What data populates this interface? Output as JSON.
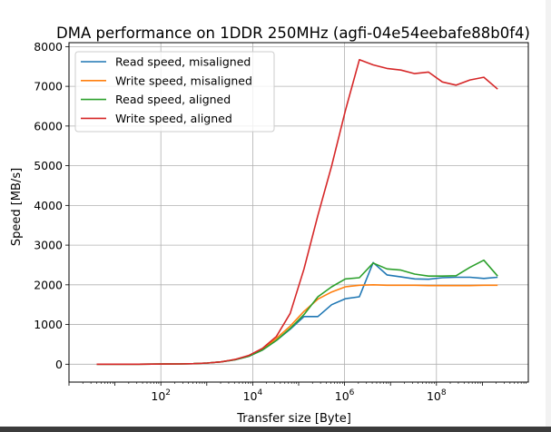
{
  "chart_data": {
    "type": "line",
    "title": "DMA performance on 1DDR 250MHz (agfi-04e54eebafe88b0f4)",
    "xlabel": "Transfer size [Byte]",
    "ylabel": "Speed [MB/s]",
    "xscale": "log",
    "xlim": [
      1,
      10000000000
    ],
    "ylim": [
      -450,
      8100
    ],
    "x_ticks": [
      {
        "value": 100,
        "base": "10",
        "exp": "2"
      },
      {
        "value": 10000,
        "base": "10",
        "exp": "4"
      },
      {
        "value": 1000000,
        "base": "10",
        "exp": "6"
      },
      {
        "value": 100000000,
        "base": "10",
        "exp": "8"
      }
    ],
    "y_ticks": [
      {
        "value": 0,
        "label": "0"
      },
      {
        "value": 1000,
        "label": "1000"
      },
      {
        "value": 2000,
        "label": "2000"
      },
      {
        "value": 3000,
        "label": "3000"
      },
      {
        "value": 4000,
        "label": "4000"
      },
      {
        "value": 5000,
        "label": "5000"
      },
      {
        "value": 6000,
        "label": "6000"
      },
      {
        "value": 7000,
        "label": "7000"
      },
      {
        "value": 8000,
        "label": "8000"
      }
    ],
    "grid": true,
    "legend_position": "top-left",
    "x": [
      4,
      8,
      16,
      32,
      64,
      128,
      256,
      512,
      1024,
      2048,
      4096,
      8192,
      16384,
      32768,
      65536,
      131072,
      262144,
      524288,
      1048576,
      2097152,
      4194304,
      8388608,
      16777216,
      33554432,
      67108864,
      134217728,
      268435456,
      536870912,
      1073741824,
      2147483648
    ],
    "series": [
      {
        "name": "Read speed, misaligned",
        "color": "#1f77b4",
        "values": [
          0,
          0,
          1,
          1,
          2,
          4,
          8,
          15,
          30,
          60,
          110,
          200,
          360,
          600,
          880,
          1200,
          1200,
          1500,
          1650,
          1700,
          2560,
          2250,
          2200,
          2150,
          2140,
          2180,
          2190,
          2190,
          2160,
          2190
        ]
      },
      {
        "name": "Write speed, misaligned",
        "color": "#ff7f0e",
        "values": [
          0,
          0,
          1,
          1,
          2,
          4,
          8,
          15,
          30,
          60,
          120,
          210,
          380,
          650,
          960,
          1330,
          1640,
          1820,
          1950,
          1990,
          2000,
          1990,
          1990,
          1990,
          1980,
          1980,
          1980,
          1980,
          1990,
          1990
        ]
      },
      {
        "name": "Read speed, aligned",
        "color": "#2ca02c",
        "values": [
          0,
          0,
          1,
          1,
          2,
          4,
          8,
          15,
          30,
          60,
          110,
          200,
          360,
          600,
          900,
          1250,
          1700,
          1950,
          2150,
          2180,
          2550,
          2400,
          2370,
          2270,
          2220,
          2220,
          2230,
          2440,
          2620,
          2220
        ]
      },
      {
        "name": "Write speed, aligned",
        "color": "#d62728",
        "values": [
          0,
          0,
          1,
          1,
          2,
          4,
          8,
          15,
          30,
          60,
          120,
          220,
          400,
          700,
          1280,
          2400,
          3750,
          5000,
          6400,
          7670,
          7540,
          7450,
          7410,
          7320,
          7360,
          7110,
          7030,
          7160,
          7230,
          6930
        ]
      }
    ]
  }
}
